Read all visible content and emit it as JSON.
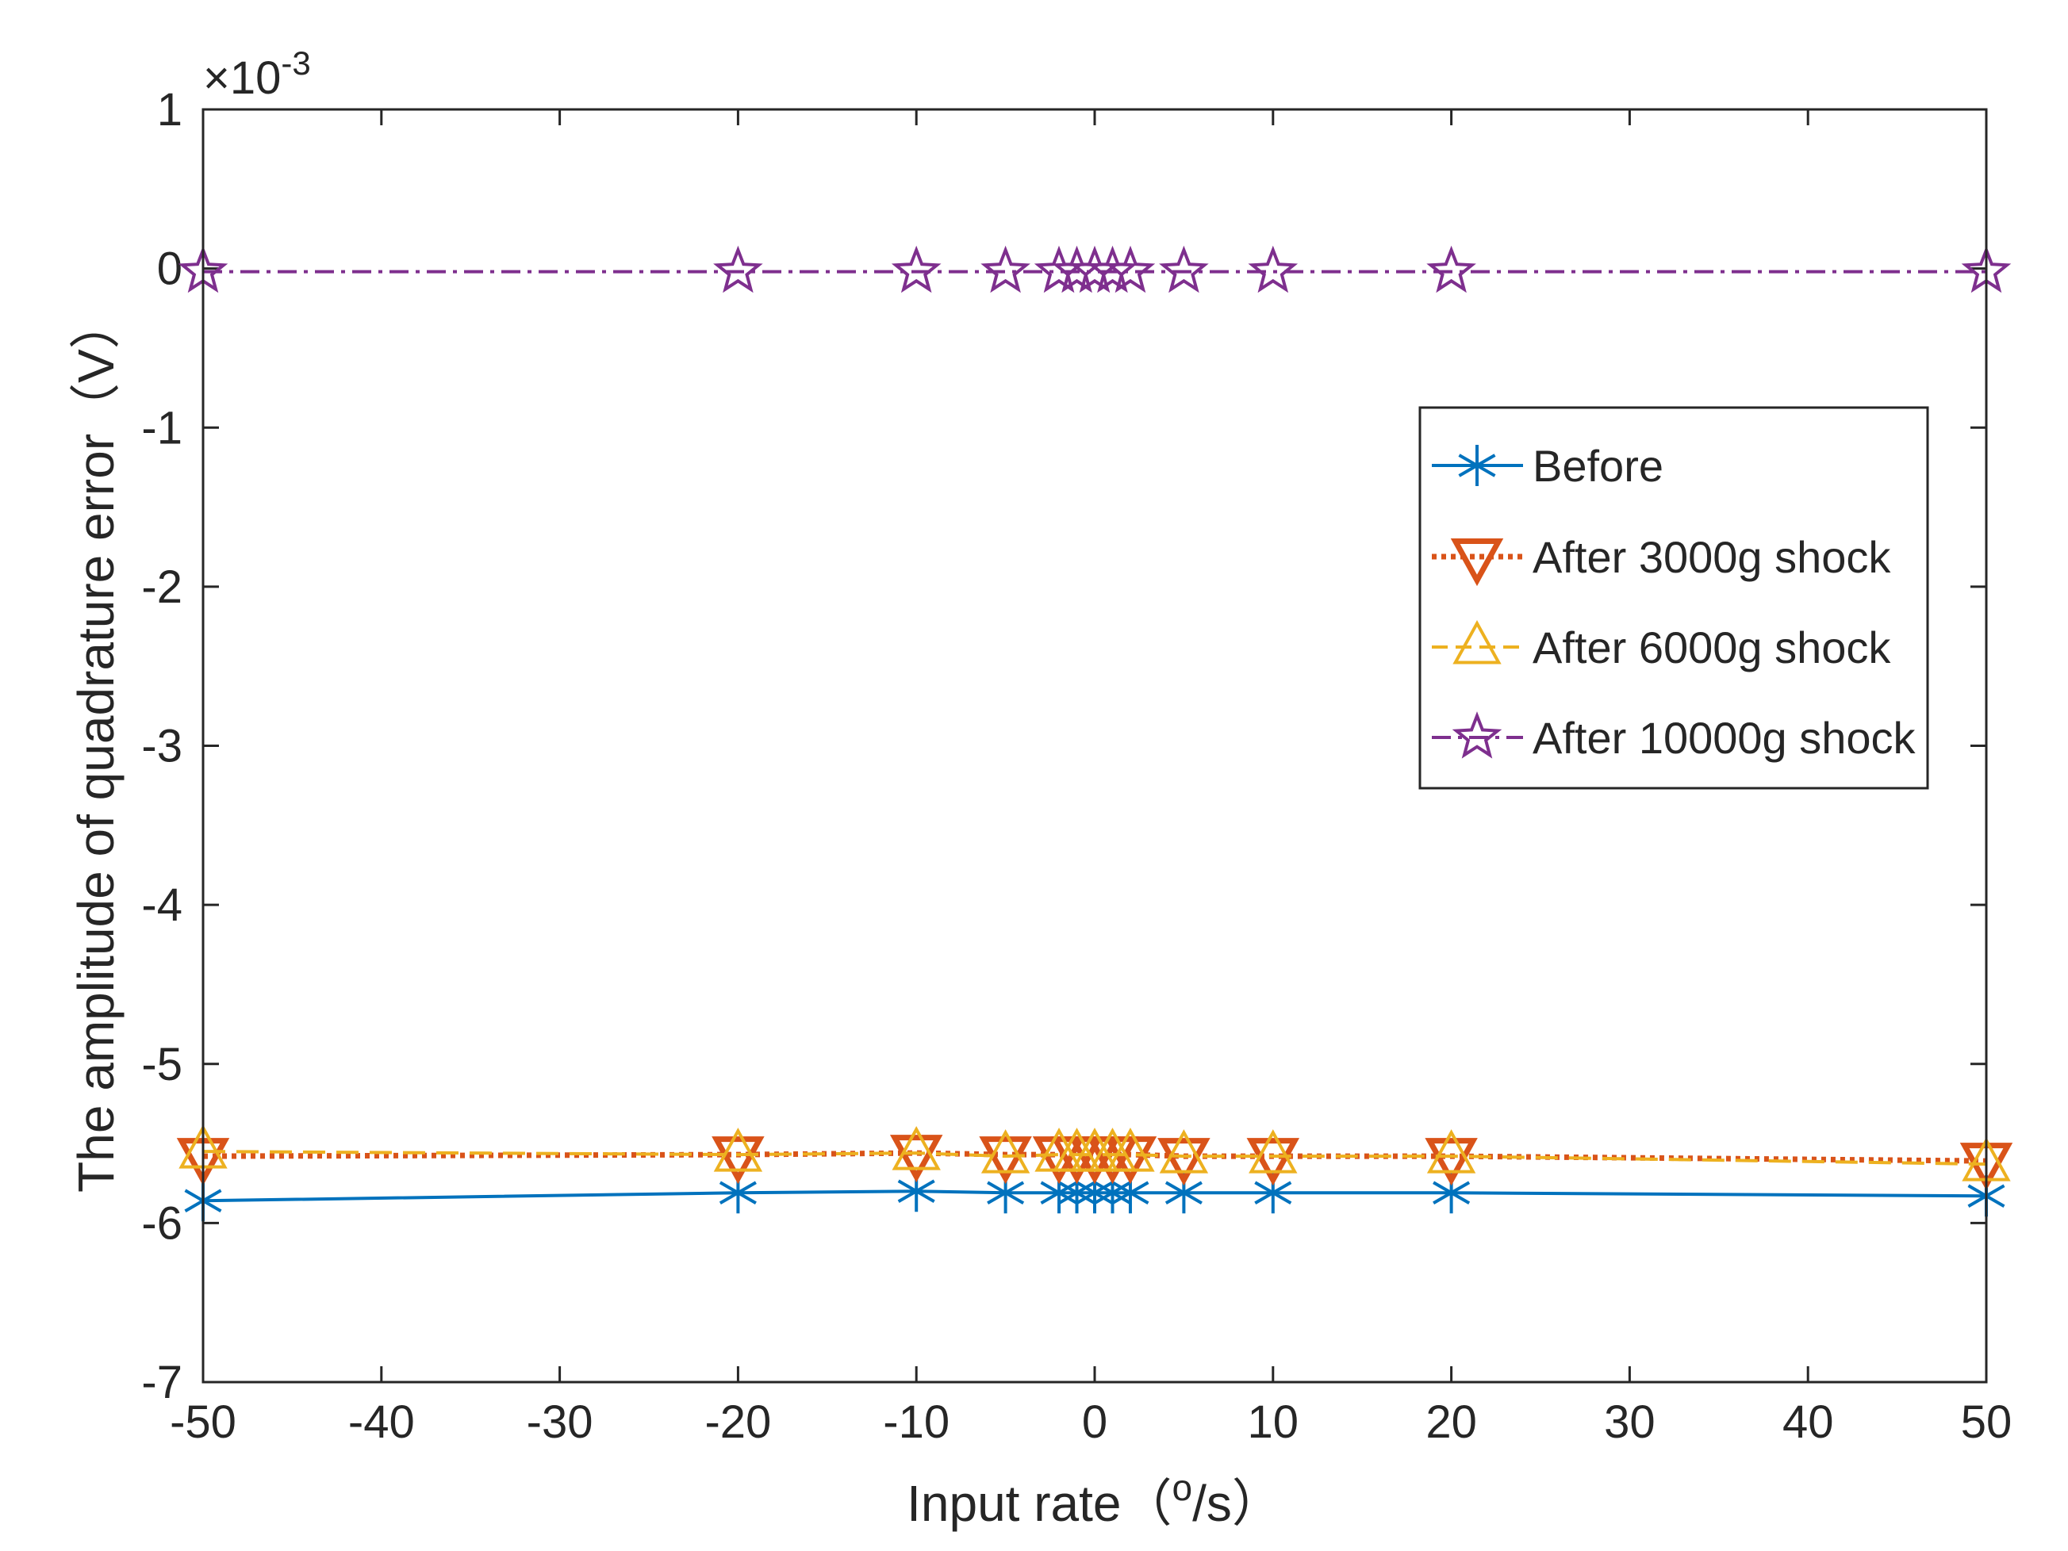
{
  "chart_data": {
    "type": "line",
    "xlabel": "Input rate（",
    "xlabel_super": "o",
    "xlabel_tail": "/s）",
    "ylabel": "The amplitude of quadrature error（V）",
    "exponent_prefix": "×10",
    "exponent_power": "-3",
    "xlim": [
      -50,
      50
    ],
    "ylim": [
      -7,
      1
    ],
    "xticks": [
      -50,
      -40,
      -30,
      -20,
      -10,
      0,
      10,
      20,
      30,
      40,
      50
    ],
    "yticks": [
      -7,
      -6,
      -5,
      -4,
      -3,
      -2,
      -1,
      0,
      1
    ],
    "x": [
      -50,
      -20,
      -10,
      -5,
      -2,
      -1,
      0,
      1,
      2,
      5,
      10,
      20,
      50
    ],
    "legend_position": "right",
    "series": [
      {
        "name": "Before",
        "color": "#0072BD",
        "marker": "asterisk",
        "dash": "",
        "values": [
          -5.86,
          -5.81,
          -5.8,
          -5.81,
          -5.81,
          -5.81,
          -5.81,
          -5.81,
          -5.81,
          -5.81,
          -5.81,
          -5.81,
          -5.83
        ]
      },
      {
        "name": "After 3000g shock",
        "color": "#D95319",
        "marker": "triangle-down",
        "dash": "6,6",
        "values": [
          -5.58,
          -5.57,
          -5.56,
          -5.57,
          -5.57,
          -5.57,
          -5.57,
          -5.57,
          -5.57,
          -5.58,
          -5.58,
          -5.58,
          -5.61
        ]
      },
      {
        "name": "After 6000g shock",
        "color": "#EDB120",
        "marker": "triangle-up",
        "dash": "28,14",
        "values": [
          -5.55,
          -5.57,
          -5.56,
          -5.58,
          -5.57,
          -5.57,
          -5.57,
          -5.57,
          -5.57,
          -5.58,
          -5.58,
          -5.58,
          -5.63
        ]
      },
      {
        "name": "After 10000g shock",
        "color": "#7E2F8E",
        "marker": "star",
        "dash": "24,9,5,9",
        "values": [
          -0.02,
          -0.02,
          -0.02,
          -0.02,
          -0.02,
          -0.02,
          -0.02,
          -0.02,
          -0.02,
          -0.02,
          -0.02,
          -0.02,
          -0.02
        ]
      }
    ]
  }
}
